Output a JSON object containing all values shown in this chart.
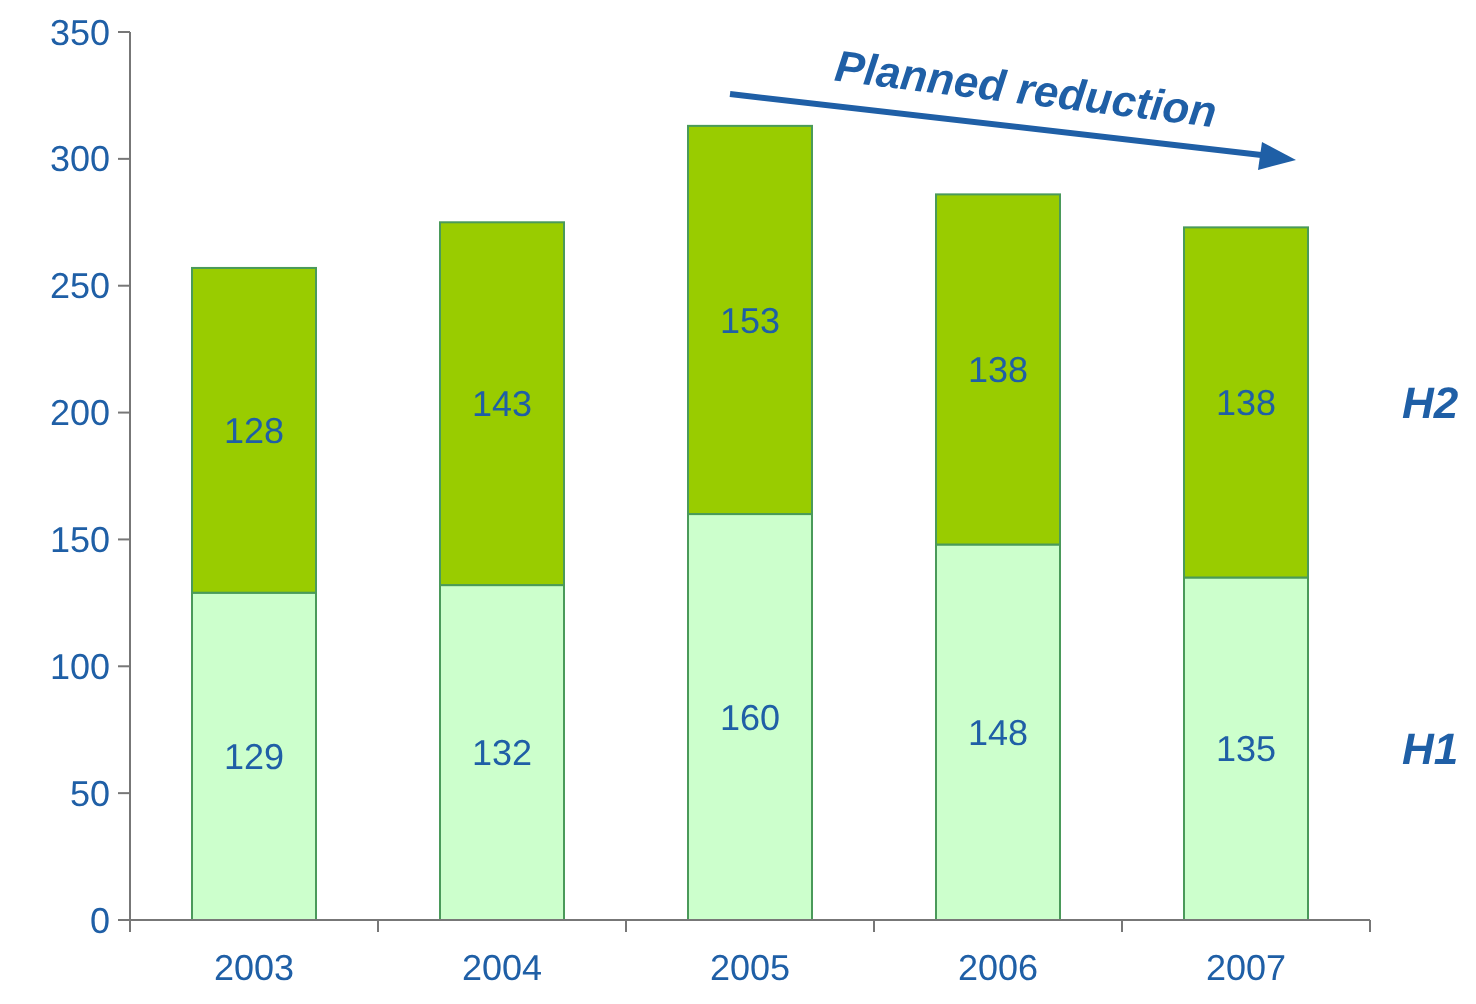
{
  "chart_data": {
    "type": "bar",
    "stacked": true,
    "categories": [
      "2003",
      "2004",
      "2005",
      "2006",
      "2007"
    ],
    "series": [
      {
        "name": "H1",
        "color": "#ccffcc",
        "values": [
          129,
          132,
          160,
          148,
          135
        ]
      },
      {
        "name": "H2",
        "color": "#99cc00",
        "values": [
          128,
          143,
          153,
          138,
          138
        ]
      }
    ],
    "ylim": [
      0,
      350
    ],
    "yticks": [
      0,
      50,
      100,
      150,
      200,
      250,
      300,
      350
    ],
    "data_labels": true,
    "legend": "right",
    "annotations": [
      "Planned reduction"
    ]
  }
}
